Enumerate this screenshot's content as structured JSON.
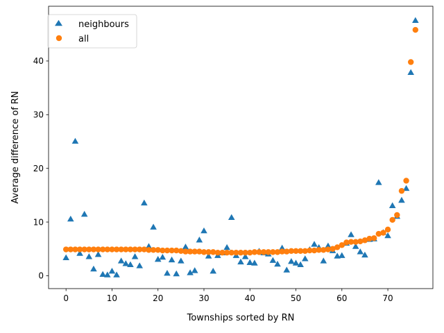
{
  "chart_data": {
    "type": "scatter",
    "xlabel": "Townships sorted by RN",
    "ylabel": "Average difference of RN",
    "xlim": [
      -3.8,
      79.8
    ],
    "ylim": [
      -2.4,
      50.2
    ],
    "xticks": [
      0,
      10,
      20,
      30,
      40,
      50,
      60,
      70
    ],
    "yticks": [
      0,
      10,
      20,
      30,
      40
    ],
    "grid": false,
    "legend_position": "top-left",
    "series": [
      {
        "name": "neighbours",
        "marker": "triangle",
        "color": "#1f77b4",
        "points": [
          [
            0,
            3.3
          ],
          [
            1,
            10.5
          ],
          [
            2,
            25.0
          ],
          [
            3,
            4.1
          ],
          [
            4,
            11.4
          ],
          [
            5,
            3.5
          ],
          [
            6,
            1.2
          ],
          [
            7,
            3.9
          ],
          [
            8,
            0.2
          ],
          [
            9,
            0.1
          ],
          [
            10,
            0.8
          ],
          [
            11,
            0.1
          ],
          [
            12,
            2.7
          ],
          [
            13,
            2.2
          ],
          [
            14,
            2.0
          ],
          [
            15,
            3.5
          ],
          [
            16,
            1.8
          ],
          [
            17,
            13.5
          ],
          [
            18,
            5.4
          ],
          [
            19,
            9.0
          ],
          [
            20,
            3.0
          ],
          [
            21,
            3.4
          ],
          [
            22,
            0.4
          ],
          [
            23,
            2.9
          ],
          [
            24,
            0.3
          ],
          [
            25,
            2.7
          ],
          [
            26,
            5.3
          ],
          [
            27,
            0.5
          ],
          [
            28,
            0.9
          ],
          [
            29,
            6.6
          ],
          [
            30,
            8.3
          ],
          [
            31,
            3.6
          ],
          [
            32,
            0.8
          ],
          [
            33,
            3.7
          ],
          [
            34,
            4.2
          ],
          [
            35,
            5.2
          ],
          [
            36,
            10.8
          ],
          [
            37,
            3.7
          ],
          [
            38,
            2.5
          ],
          [
            39,
            3.5
          ],
          [
            40,
            2.4
          ],
          [
            41,
            2.3
          ],
          [
            42,
            4.5
          ],
          [
            43,
            4.2
          ],
          [
            44,
            4.0
          ],
          [
            45,
            2.8
          ],
          [
            46,
            2.1
          ],
          [
            47,
            5.1
          ],
          [
            48,
            1.0
          ],
          [
            49,
            2.6
          ],
          [
            50,
            2.3
          ],
          [
            51,
            2.0
          ],
          [
            52,
            3.1
          ],
          [
            53,
            4.8
          ],
          [
            54,
            5.8
          ],
          [
            55,
            5.2
          ],
          [
            56,
            2.7
          ],
          [
            57,
            5.5
          ],
          [
            58,
            4.6
          ],
          [
            59,
            3.6
          ],
          [
            60,
            3.7
          ],
          [
            61,
            6.0
          ],
          [
            62,
            7.6
          ],
          [
            63,
            5.4
          ],
          [
            64,
            4.4
          ],
          [
            65,
            3.8
          ],
          [
            66,
            6.7
          ],
          [
            67,
            6.8
          ],
          [
            68,
            17.3
          ],
          [
            69,
            8.0
          ],
          [
            70,
            7.4
          ],
          [
            71,
            13.0
          ],
          [
            72,
            11.0
          ],
          [
            73,
            14.0
          ],
          [
            74,
            16.2
          ],
          [
            75,
            37.8
          ],
          [
            76,
            47.5
          ]
        ]
      },
      {
        "name": "all",
        "marker": "circle",
        "color": "#ff7f0e",
        "points": [
          [
            0,
            4.9
          ],
          [
            1,
            4.9
          ],
          [
            2,
            4.9
          ],
          [
            3,
            4.9
          ],
          [
            4,
            4.9
          ],
          [
            5,
            4.9
          ],
          [
            6,
            4.9
          ],
          [
            7,
            4.9
          ],
          [
            8,
            4.9
          ],
          [
            9,
            4.9
          ],
          [
            10,
            4.9
          ],
          [
            11,
            4.9
          ],
          [
            12,
            4.9
          ],
          [
            13,
            4.9
          ],
          [
            14,
            4.9
          ],
          [
            15,
            4.9
          ],
          [
            16,
            4.9
          ],
          [
            17,
            4.9
          ],
          [
            18,
            4.8
          ],
          [
            19,
            4.8
          ],
          [
            20,
            4.8
          ],
          [
            21,
            4.7
          ],
          [
            22,
            4.7
          ],
          [
            23,
            4.7
          ],
          [
            24,
            4.7
          ],
          [
            25,
            4.6
          ],
          [
            26,
            4.5
          ],
          [
            27,
            4.5
          ],
          [
            28,
            4.5
          ],
          [
            29,
            4.5
          ],
          [
            30,
            4.4
          ],
          [
            31,
            4.4
          ],
          [
            32,
            4.4
          ],
          [
            33,
            4.3
          ],
          [
            34,
            4.3
          ],
          [
            35,
            4.3
          ],
          [
            36,
            4.3
          ],
          [
            37,
            4.3
          ],
          [
            38,
            4.3
          ],
          [
            39,
            4.3
          ],
          [
            40,
            4.3
          ],
          [
            41,
            4.4
          ],
          [
            42,
            4.4
          ],
          [
            43,
            4.4
          ],
          [
            44,
            4.4
          ],
          [
            45,
            4.4
          ],
          [
            46,
            4.4
          ],
          [
            47,
            4.5
          ],
          [
            48,
            4.5
          ],
          [
            49,
            4.6
          ],
          [
            50,
            4.6
          ],
          [
            51,
            4.6
          ],
          [
            52,
            4.6
          ],
          [
            53,
            4.7
          ],
          [
            54,
            4.7
          ],
          [
            55,
            4.8
          ],
          [
            56,
            4.8
          ],
          [
            57,
            4.9
          ],
          [
            58,
            5.0
          ],
          [
            59,
            5.3
          ],
          [
            60,
            5.7
          ],
          [
            61,
            6.2
          ],
          [
            62,
            6.3
          ],
          [
            63,
            6.3
          ],
          [
            64,
            6.4
          ],
          [
            65,
            6.6
          ],
          [
            66,
            6.9
          ],
          [
            67,
            7.0
          ],
          [
            68,
            7.8
          ],
          [
            69,
            8.0
          ],
          [
            70,
            8.6
          ],
          [
            71,
            10.4
          ],
          [
            72,
            11.3
          ],
          [
            73,
            15.8
          ],
          [
            74,
            17.7
          ],
          [
            75,
            39.8
          ],
          [
            76,
            45.8
          ]
        ]
      }
    ]
  }
}
